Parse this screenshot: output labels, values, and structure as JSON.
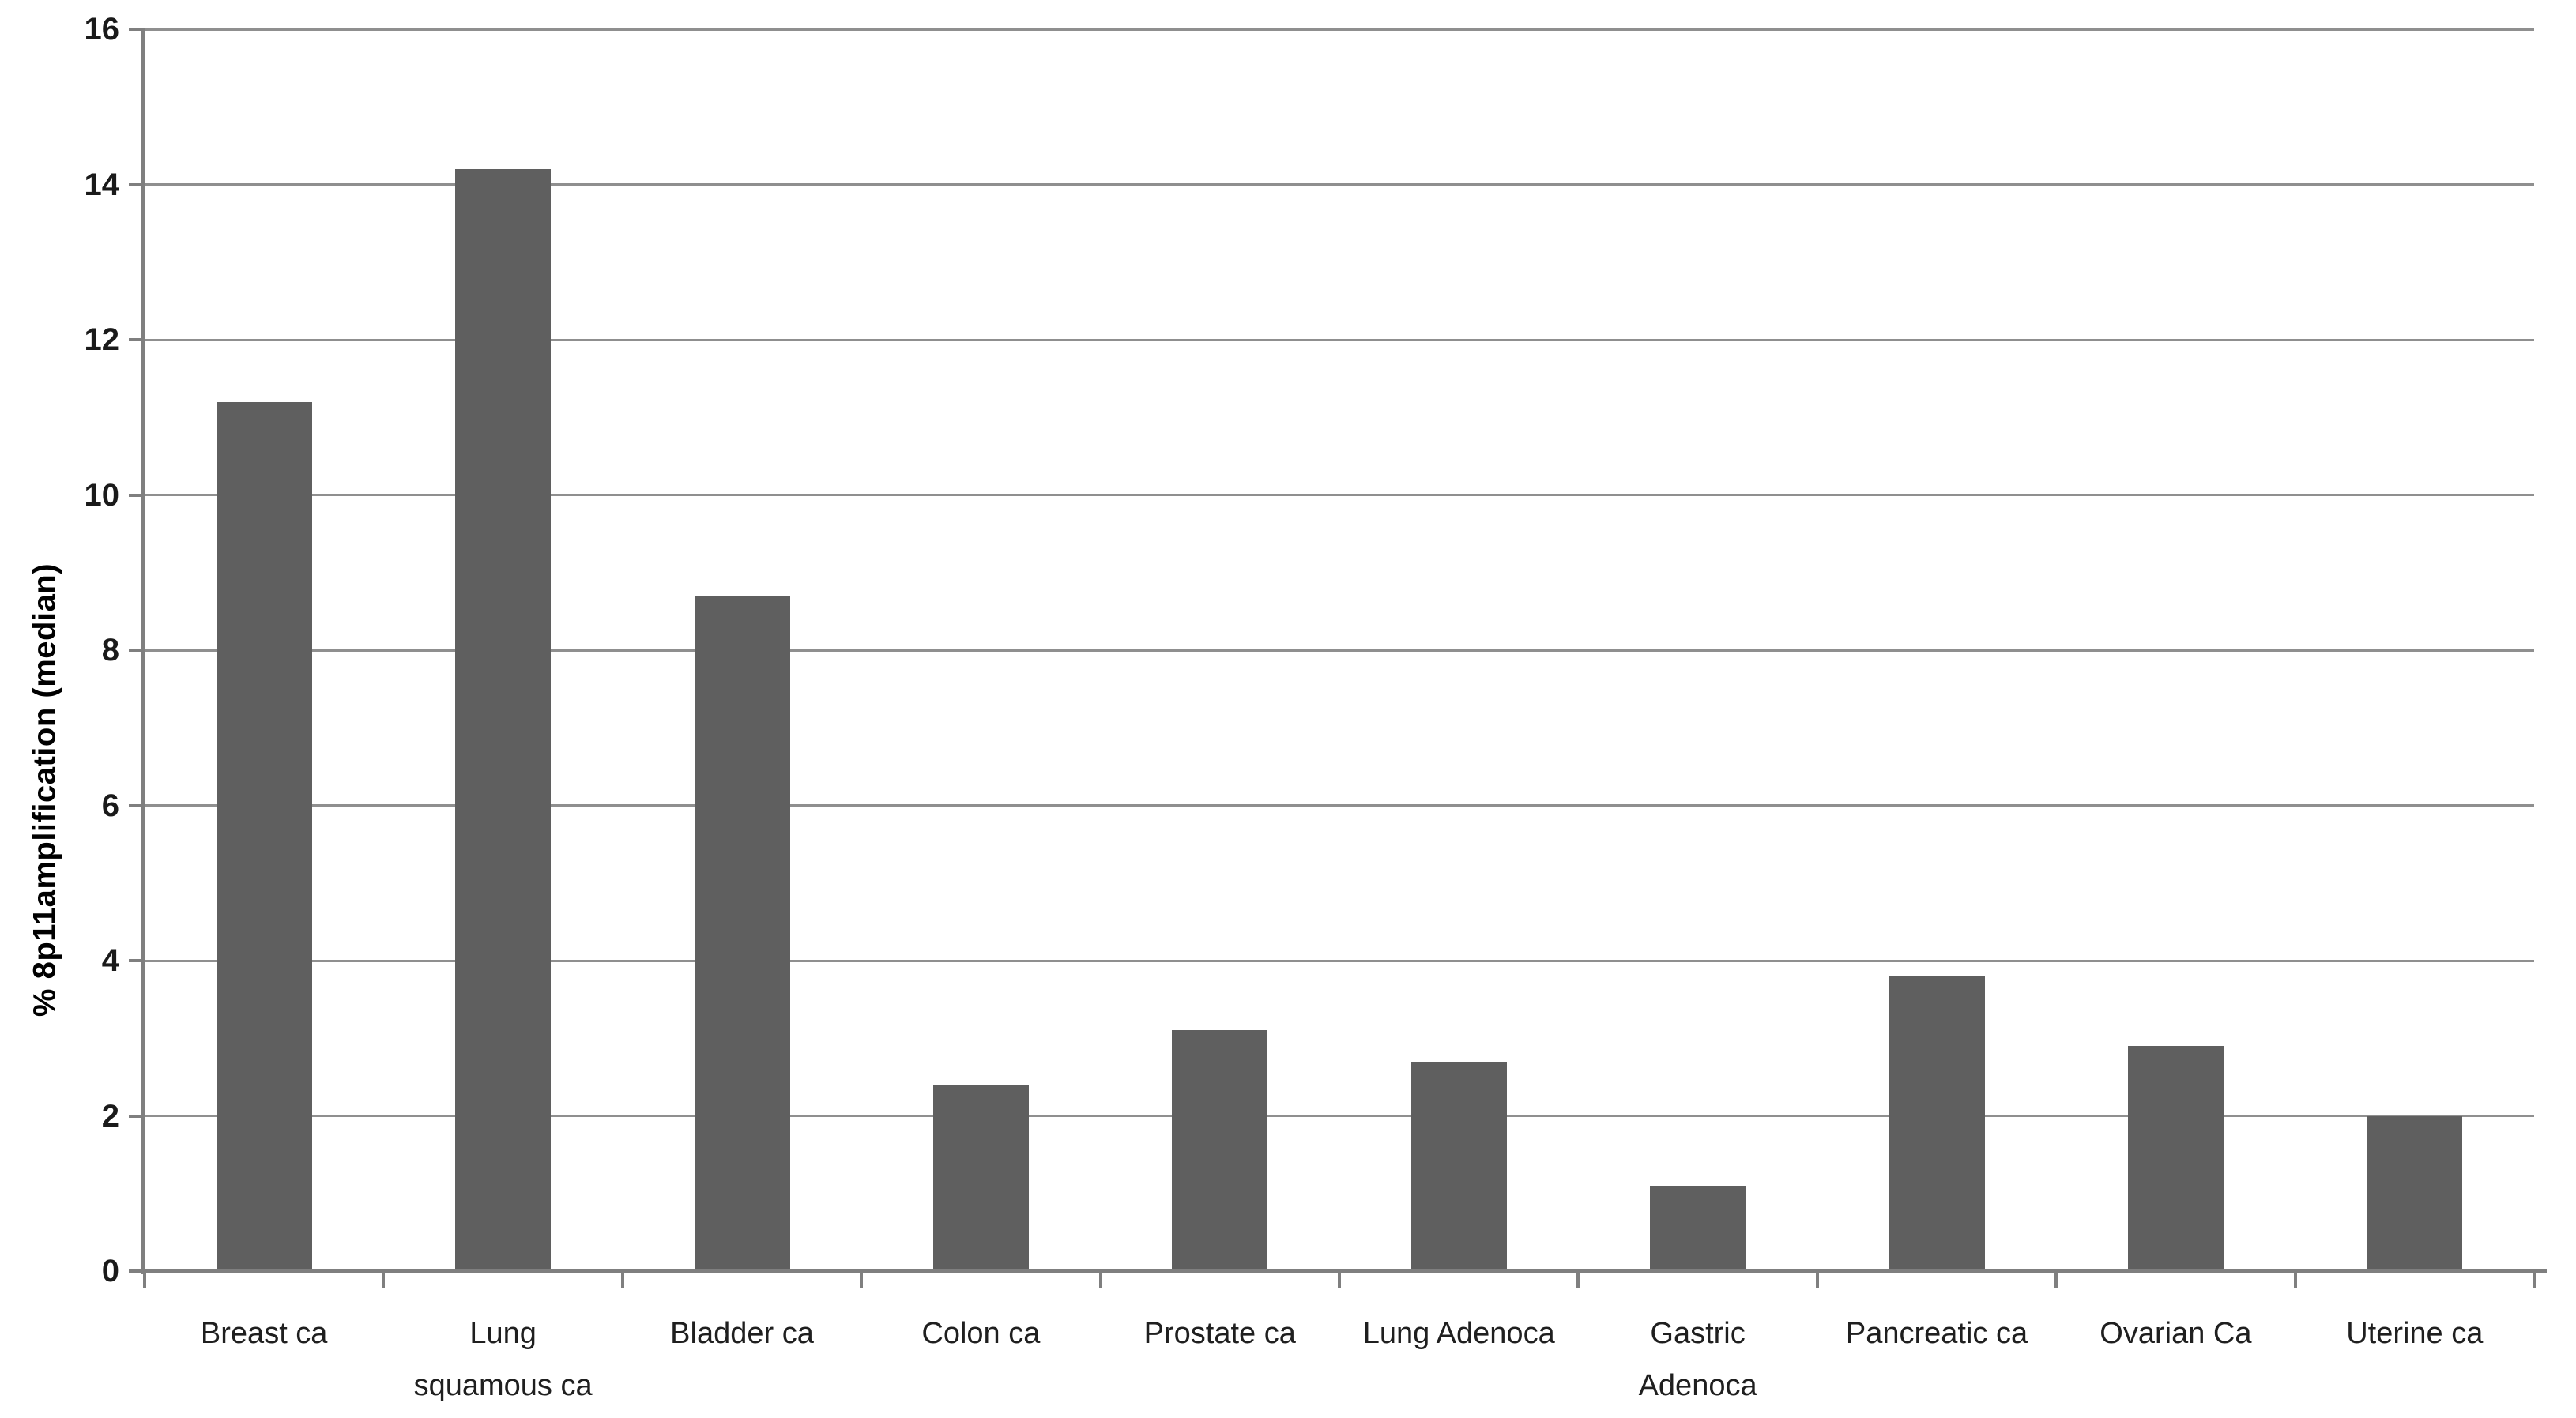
{
  "colors": {
    "background": "#ffffff",
    "bar": "#5f5f5f",
    "gridline": "#8f8f8f",
    "axis": "#7f7f7f",
    "tick_label": "#1a1a1a",
    "category_label": "#1f1f1f",
    "axis_title": "#000000"
  },
  "chart_data": {
    "type": "bar",
    "ylabel": "% 8p11amplification (median)",
    "xlabel": "",
    "categories": [
      "Breast ca",
      "Lung squamous ca",
      "Bladder ca",
      "Colon ca",
      "Prostate ca",
      "Lung Adenoca",
      "Gastric Adenoca",
      "Pancreatic ca",
      "Ovarian Ca",
      "Uterine ca"
    ],
    "category_lines": [
      [
        "Breast ca"
      ],
      [
        "Lung",
        "squamous ca"
      ],
      [
        "Bladder ca"
      ],
      [
        "Colon ca"
      ],
      [
        "Prostate ca"
      ],
      [
        "Lung Adenoca"
      ],
      [
        "Gastric",
        "Adenoca"
      ],
      [
        "Pancreatic ca"
      ],
      [
        "Ovarian Ca"
      ],
      [
        "Uterine ca"
      ]
    ],
    "values": [
      11.2,
      14.2,
      8.7,
      2.4,
      3.1,
      2.7,
      1.1,
      3.8,
      2.9,
      2.0
    ],
    "ylim": [
      0,
      16
    ],
    "yticks": [
      0,
      2,
      4,
      6,
      8,
      10,
      12,
      14,
      16
    ],
    "grid": true,
    "legend": false
  }
}
